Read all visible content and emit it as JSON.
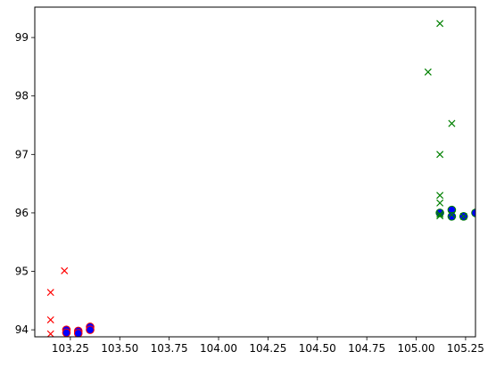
{
  "chart_data": {
    "type": "scatter",
    "title": "",
    "xlabel": "",
    "ylabel": "",
    "xlim": [
      103.07,
      105.3
    ],
    "ylim": [
      93.88,
      99.52
    ],
    "grid": false,
    "legend": "none",
    "x_ticks": [
      "103.25",
      "103.50",
      "103.75",
      "104.00",
      "104.25",
      "104.50",
      "104.75",
      "105.00",
      "105.25"
    ],
    "x_tick_values": [
      103.25,
      103.5,
      103.75,
      104.0,
      104.25,
      104.5,
      104.75,
      105.0,
      105.25
    ],
    "y_ticks": [
      "94",
      "95",
      "96",
      "97",
      "98",
      "99"
    ],
    "y_tick_values": [
      94,
      95,
      96,
      97,
      98,
      99
    ],
    "series": [
      {
        "name": "red-x",
        "marker": "x",
        "color": "#ff0000",
        "points": [
          [
            103.15,
            94.64
          ],
          [
            103.22,
            95.01
          ],
          [
            103.15,
            94.17
          ],
          [
            103.15,
            93.93
          ]
        ]
      },
      {
        "name": "red-circle",
        "marker": "o",
        "color": "#ff0000",
        "face": "#0000ff",
        "points": [
          [
            103.23,
            94.0
          ],
          [
            103.23,
            93.95
          ],
          [
            103.29,
            93.98
          ],
          [
            103.29,
            93.94
          ],
          [
            103.35,
            94.05
          ],
          [
            103.35,
            94.0
          ]
        ]
      },
      {
        "name": "green-x",
        "marker": "x",
        "color": "#008000",
        "points": [
          [
            105.12,
            99.24
          ],
          [
            105.06,
            98.41
          ],
          [
            105.18,
            97.53
          ],
          [
            105.12,
            97.0
          ],
          [
            105.12,
            96.3
          ],
          [
            105.12,
            96.17
          ],
          [
            105.12,
            95.98
          ],
          [
            105.12,
            95.95
          ],
          [
            105.18,
            95.97
          ],
          [
            105.24,
            95.94
          ]
        ]
      },
      {
        "name": "green-circle",
        "marker": "o",
        "color": "#008000",
        "face": "#0000ff",
        "points": [
          [
            105.12,
            96.0
          ],
          [
            105.18,
            96.05
          ],
          [
            105.18,
            95.94
          ],
          [
            105.24,
            95.94
          ],
          [
            105.3,
            96.0
          ]
        ]
      }
    ]
  }
}
